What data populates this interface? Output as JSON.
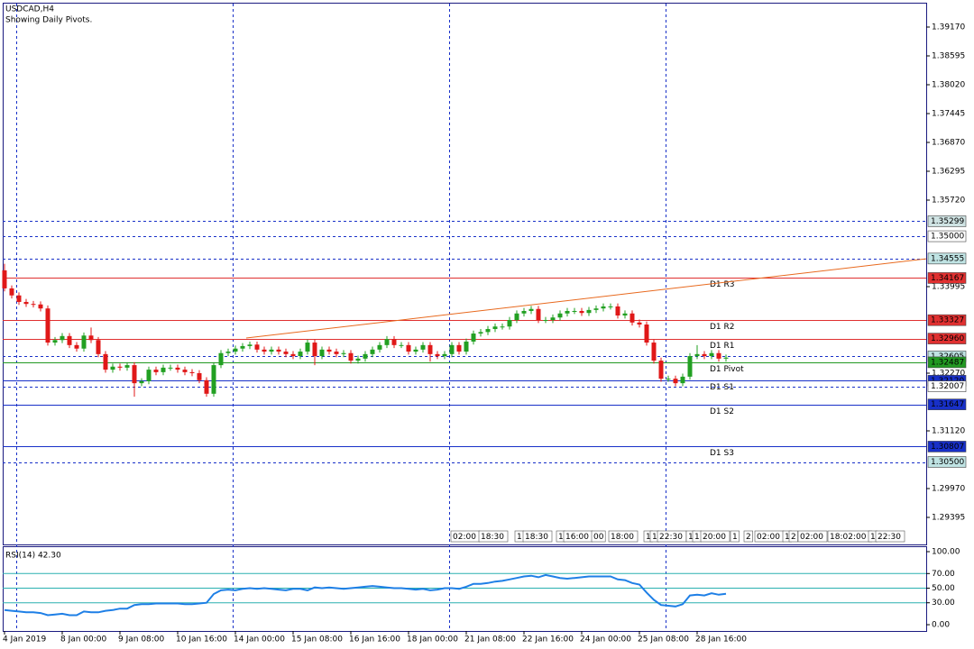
{
  "chart_data": {
    "type": "candlestick",
    "title": "USDCAD,H4",
    "subtitle": "Showing Daily Pivots.",
    "up_color": "#22a022",
    "down_color": "#e01818",
    "xlim": [
      -0.25,
      127.75
    ],
    "ylim": [
      1.28856,
      1.39655
    ],
    "yticks": [
      {
        "value": 1.3917,
        "label": "1.39170"
      },
      1.38595,
      {
        "value": 1.3802,
        "label": "1.38020"
      },
      1.37445,
      {
        "value": 1.3687,
        "label": "1.36870"
      },
      1.36295,
      {
        "value": 1.3572,
        "label": "1.35720"
      },
      1.33995,
      {
        "value": 1.3227,
        "label": "1.32270"
      },
      {
        "value": 1.3112,
        "label": "1.31120"
      },
      {
        "value": 1.2997,
        "label": "1.29970"
      },
      1.29395
    ],
    "xticks": [
      {
        "value": 0,
        "label": "4 Jan 2019"
      },
      {
        "value": 8,
        "label": "8 Jan 00:00"
      },
      {
        "value": 16,
        "label": "9 Jan 08:00"
      },
      {
        "value": 24,
        "label": "10 Jan 16:00"
      },
      {
        "value": 32,
        "label": "14 Jan 00:00"
      },
      {
        "value": 40,
        "label": "15 Jan 08:00"
      },
      {
        "value": 48,
        "label": "16 Jan 16:00"
      },
      {
        "value": 56,
        "label": "18 Jan 00:00"
      },
      {
        "value": 64,
        "label": "21 Jan 08:00"
      },
      {
        "value": 72,
        "label": "22 Jan 16:00"
      },
      {
        "value": 80,
        "label": "24 Jan 00:00"
      },
      {
        "value": 88,
        "label": "25 Jan 08:00"
      },
      {
        "value": 96,
        "label": "28 Jan 16:00"
      }
    ],
    "open": [
      1.3432,
      1.3396,
      1.3382,
      1.3369,
      1.3365,
      1.3364,
      1.3356,
      1.3288,
      1.3293,
      1.3301,
      1.3283,
      1.3276,
      1.3302,
      1.3293,
      1.3265,
      1.3234,
      1.324,
      1.3238,
      1.3243,
      1.3207,
      1.3211,
      1.3234,
      1.3229,
      1.3238,
      1.3238,
      1.3234,
      1.3229,
      1.3227,
      1.3213,
      1.3186,
      1.3243,
      1.3267,
      1.327,
      1.3276,
      1.3281,
      1.3284,
      1.3274,
      1.327,
      1.3274,
      1.327,
      1.3265,
      1.3261,
      1.327,
      1.3288,
      1.3261,
      1.3274,
      1.327,
      1.3265,
      1.3267,
      1.3252,
      1.3256,
      1.3265,
      1.3274,
      1.3283,
      1.3295,
      1.3283,
      1.3283,
      1.327,
      1.3274,
      1.3283,
      1.3265,
      1.3261,
      1.3265,
      1.3283,
      1.327,
      1.329,
      1.3306,
      1.3309,
      1.3315,
      1.332,
      1.332,
      1.3333,
      1.3346,
      1.3351,
      1.3355,
      1.3333,
      1.3333,
      1.3338,
      1.3346,
      1.3351,
      1.3351,
      1.3347,
      1.3353,
      1.3356,
      1.336,
      1.336,
      1.3342,
      1.3346,
      1.3328,
      1.3324,
      1.3288,
      1.3252,
      1.3216,
      1.3216,
      1.3207,
      1.322,
      1.3261,
      1.3265,
      1.3261,
      1.3267,
      1.3256
    ],
    "high": [
      1.3445,
      1.3402,
      1.3388,
      1.3375,
      1.3371,
      1.337,
      1.3362,
      1.3299,
      1.3307,
      1.3307,
      1.3289,
      1.3308,
      1.3318,
      1.3299,
      1.3271,
      1.3246,
      1.3246,
      1.3249,
      1.3249,
      1.3217,
      1.324,
      1.324,
      1.3244,
      1.3244,
      1.3244,
      1.324,
      1.3235,
      1.3233,
      1.3219,
      1.3249,
      1.3273,
      1.3276,
      1.3282,
      1.3287,
      1.329,
      1.329,
      1.328,
      1.328,
      1.328,
      1.3276,
      1.3271,
      1.3276,
      1.3294,
      1.3294,
      1.328,
      1.328,
      1.3276,
      1.3273,
      1.3273,
      1.3262,
      1.3271,
      1.328,
      1.3289,
      1.3301,
      1.3301,
      1.3289,
      1.3289,
      1.328,
      1.3289,
      1.3289,
      1.3271,
      1.3271,
      1.3289,
      1.3289,
      1.3296,
      1.3312,
      1.3315,
      1.3321,
      1.3326,
      1.3326,
      1.3339,
      1.3352,
      1.3357,
      1.3361,
      1.3361,
      1.3339,
      1.3344,
      1.3352,
      1.3357,
      1.3357,
      1.3357,
      1.3359,
      1.3362,
      1.3366,
      1.3366,
      1.3366,
      1.3352,
      1.3352,
      1.3334,
      1.333,
      1.3294,
      1.3258,
      1.3222,
      1.3222,
      1.3226,
      1.3267,
      1.3283,
      1.3271,
      1.3273,
      1.3273,
      1.3264
    ],
    "low": [
      1.339,
      1.3376,
      1.3363,
      1.3359,
      1.3358,
      1.335,
      1.3282,
      1.3282,
      1.3287,
      1.3277,
      1.327,
      1.327,
      1.3287,
      1.3259,
      1.3228,
      1.3228,
      1.3232,
      1.3232,
      1.318,
      1.3201,
      1.3205,
      1.3223,
      1.3223,
      1.3232,
      1.3228,
      1.3223,
      1.3221,
      1.3207,
      1.318,
      1.318,
      1.3237,
      1.3261,
      1.3264,
      1.327,
      1.3275,
      1.3268,
      1.3264,
      1.3264,
      1.3264,
      1.3259,
      1.3255,
      1.3255,
      1.3264,
      1.3243,
      1.3255,
      1.3264,
      1.3259,
      1.3259,
      1.3246,
      1.3246,
      1.325,
      1.3259,
      1.3268,
      1.3277,
      1.3277,
      1.3277,
      1.3264,
      1.3264,
      1.3268,
      1.325,
      1.3255,
      1.3255,
      1.3259,
      1.3264,
      1.3264,
      1.3284,
      1.33,
      1.3303,
      1.3309,
      1.3314,
      1.3314,
      1.3327,
      1.334,
      1.3345,
      1.3327,
      1.3327,
      1.3327,
      1.3332,
      1.334,
      1.3345,
      1.3341,
      1.3341,
      1.3347,
      1.335,
      1.3354,
      1.3336,
      1.3336,
      1.3322,
      1.3318,
      1.3282,
      1.3246,
      1.321,
      1.321,
      1.3201,
      1.3201,
      1.3214,
      1.3255,
      1.3255,
      1.3255,
      1.325,
      1.325
    ],
    "close": [
      1.3396,
      1.3382,
      1.3369,
      1.3365,
      1.3364,
      1.3356,
      1.3288,
      1.3293,
      1.3301,
      1.3283,
      1.3276,
      1.3302,
      1.3293,
      1.3265,
      1.3234,
      1.324,
      1.3238,
      1.3243,
      1.3207,
      1.3211,
      1.3234,
      1.3229,
      1.3238,
      1.3238,
      1.3234,
      1.3229,
      1.3227,
      1.3213,
      1.3186,
      1.3243,
      1.3267,
      1.327,
      1.3276,
      1.3281,
      1.3284,
      1.3274,
      1.327,
      1.3274,
      1.327,
      1.3265,
      1.3261,
      1.327,
      1.3288,
      1.3261,
      1.3274,
      1.327,
      1.3265,
      1.3267,
      1.3252,
      1.3256,
      1.3265,
      1.3274,
      1.3283,
      1.3295,
      1.3283,
      1.3283,
      1.327,
      1.3274,
      1.3283,
      1.3265,
      1.3261,
      1.3265,
      1.3283,
      1.327,
      1.329,
      1.3306,
      1.3309,
      1.3315,
      1.332,
      1.332,
      1.3333,
      1.3346,
      1.3351,
      1.3355,
      1.3333,
      1.3333,
      1.3338,
      1.3346,
      1.3351,
      1.3351,
      1.3347,
      1.3353,
      1.3356,
      1.336,
      1.336,
      1.3342,
      1.3346,
      1.3328,
      1.3324,
      1.3288,
      1.3252,
      1.3216,
      1.3216,
      1.3207,
      1.322,
      1.3261,
      1.3265,
      1.3261,
      1.3267,
      1.3256,
      1.3258
    ],
    "levels": [
      {
        "value": 1.35299,
        "style": "dashed",
        "color": "#1830c8",
        "box": "#cfe3e3",
        "text_color": "#000"
      },
      {
        "value": 1.35,
        "label": "1.35000",
        "style": "dashed",
        "color": "#1830c8",
        "box": "#ffffff",
        "text_color": "#000"
      },
      {
        "value": 1.34555,
        "style": "dashed",
        "color": "#1830c8",
        "box": "#bfe3e3",
        "text_color": "#000"
      },
      {
        "value": 1.34167,
        "name": "D1 R3",
        "style": "solid",
        "color": "#e03030",
        "box": "#e03030",
        "text_color": "#fff"
      },
      {
        "value": 1.32605,
        "style": "dashed",
        "color": "#1830c8",
        "box": "#bfe3e3",
        "text_color": "#000"
      },
      {
        "value": 1.33327,
        "name": "D1 R2",
        "style": "solid",
        "color": "#e03030",
        "box": "#e03030",
        "text_color": "#fff"
      },
      {
        "value": 1.3296,
        "label": "1.32960",
        "name": "D1 R1",
        "style": "solid",
        "color": "#e03030",
        "box": "#e03030",
        "text_color": "#fff"
      },
      {
        "value": 1.32487,
        "name": "D1 Pivot",
        "style": "solid",
        "color": "#229922",
        "box": "#229922",
        "text_color": "#fff"
      },
      {
        "value": 1.3212,
        "label": "1.32120",
        "name": "D1 S1",
        "style": "solid",
        "color": "#1830c8",
        "box": "#1830c8",
        "text_color": "#fff"
      },
      {
        "value": 1.32007,
        "style": "dashed",
        "color": "#1830c8",
        "box": "#ffffff",
        "text_color": "#000"
      },
      {
        "value": 1.31647,
        "name": "D1 S2",
        "style": "solid",
        "color": "#1830c8",
        "box": "#1830c8",
        "text_color": "#fff"
      },
      {
        "value": 1.30807,
        "name": "D1 S3",
        "style": "solid",
        "color": "#1830c8",
        "box": "#1830c8",
        "text_color": "#fff"
      },
      {
        "value": 1.305,
        "label": "1.30500",
        "style": "dashed",
        "color": "#1830c8",
        "box": "#bfe3e3",
        "text_color": "#000"
      }
    ],
    "trendline": {
      "x": [
        33.5,
        127.75
      ],
      "values": [
        1.3297,
        1.3455
      ],
      "color": "#e8691e"
    },
    "time_labels": [
      "02:00",
      "18:30",
      "1",
      "18:30",
      "1",
      "16:00",
      "00",
      "18:00",
      "1",
      "1",
      "22:30",
      "1",
      "1",
      "20:00",
      "1",
      "2",
      "02:00",
      "1",
      "2",
      "02:00",
      "18:02:00",
      "1",
      "22:30"
    ],
    "indicator": {
      "type": "line",
      "title": "RSI(14) 42.30",
      "color": "#1e7fe6",
      "level_color": "#2ab0b0",
      "ylim": [
        -8.6,
        107.4
      ],
      "yticks": [
        {
          "value": 100,
          "label": "100.00"
        },
        {
          "value": 70,
          "label": "70.00"
        },
        {
          "value": 50,
          "label": "50.00"
        },
        {
          "value": 30,
          "label": "30.00"
        },
        {
          "value": 0,
          "label": "0.00"
        }
      ],
      "levels": [
        70,
        50,
        30
      ],
      "values": [
        20,
        19,
        18,
        17,
        17,
        16,
        13,
        14,
        15,
        13,
        13,
        18,
        17,
        17,
        19,
        20,
        22,
        22,
        27,
        28,
        28,
        29,
        29,
        29,
        29,
        28,
        28,
        29,
        30,
        42,
        47,
        48,
        47,
        49,
        50,
        49,
        50,
        49,
        48,
        47,
        49,
        49,
        47,
        51,
        50,
        51,
        50,
        49,
        50,
        51,
        52,
        53,
        52,
        51,
        50,
        50,
        49,
        48,
        49,
        47,
        48,
        50,
        50,
        49,
        52,
        56,
        56,
        57,
        59,
        60,
        62,
        64,
        66,
        67,
        65,
        68,
        66,
        64,
        63,
        64,
        65,
        66,
        66,
        66,
        66,
        62,
        61,
        57,
        55,
        44,
        34,
        27,
        26,
        25,
        28,
        40,
        41,
        40,
        43,
        41,
        42.3
      ]
    }
  }
}
